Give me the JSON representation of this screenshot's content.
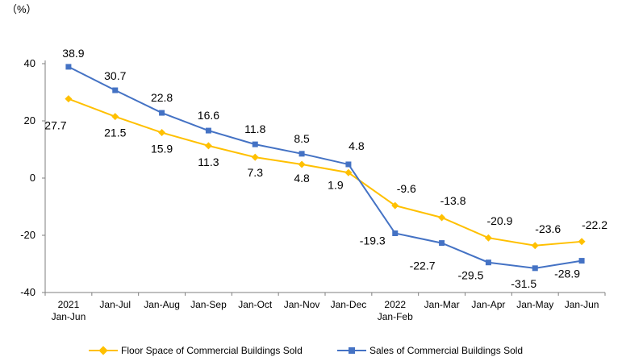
{
  "chart_data": {
    "type": "line",
    "unit_label": "（%）",
    "categories": [
      [
        "2021",
        "Jan-Jun"
      ],
      [
        "Jan-Jul"
      ],
      [
        "Jan-Aug"
      ],
      [
        "Jan-Sep"
      ],
      [
        "Jan-Oct"
      ],
      [
        "Jan-Nov"
      ],
      [
        "Jan-Dec"
      ],
      [
        "2022",
        "Jan-Feb"
      ],
      [
        "Jan-Mar"
      ],
      [
        "Jan-Apr"
      ],
      [
        "Jan-May"
      ],
      [
        "Jan-Jun"
      ]
    ],
    "ylim": [
      -40,
      40
    ],
    "yticks": [
      -40,
      -20,
      0,
      20,
      40
    ],
    "grid": false,
    "legend_position": "bottom",
    "series": [
      {
        "name": "Floor Space of Commercial Buildings Sold",
        "color": "#FFC000",
        "marker": "diamond",
        "values": [
          27.7,
          21.5,
          15.9,
          11.3,
          7.3,
          4.8,
          1.9,
          -9.6,
          -13.8,
          -20.9,
          -23.6,
          -22.2
        ],
        "labels": [
          "27.7",
          "21.5",
          "15.9",
          "11.3",
          "7.3",
          "4.8",
          "1.9",
          "-9.6",
          "-13.8",
          "-20.9",
          "-23.6",
          "-22.2"
        ]
      },
      {
        "name": "Sales of Commercial Buildings Sold",
        "color": "#4472C4",
        "marker": "square",
        "values": [
          38.9,
          30.7,
          22.8,
          16.6,
          11.8,
          8.5,
          4.8,
          -19.3,
          -22.7,
          -29.5,
          -31.5,
          -28.9
        ],
        "labels": [
          "38.9",
          "30.7",
          "22.8",
          "16.6",
          "11.8",
          "8.5",
          "4.8",
          "-19.3",
          "-22.7",
          "-29.5",
          "-31.5",
          "-28.9"
        ]
      }
    ]
  }
}
